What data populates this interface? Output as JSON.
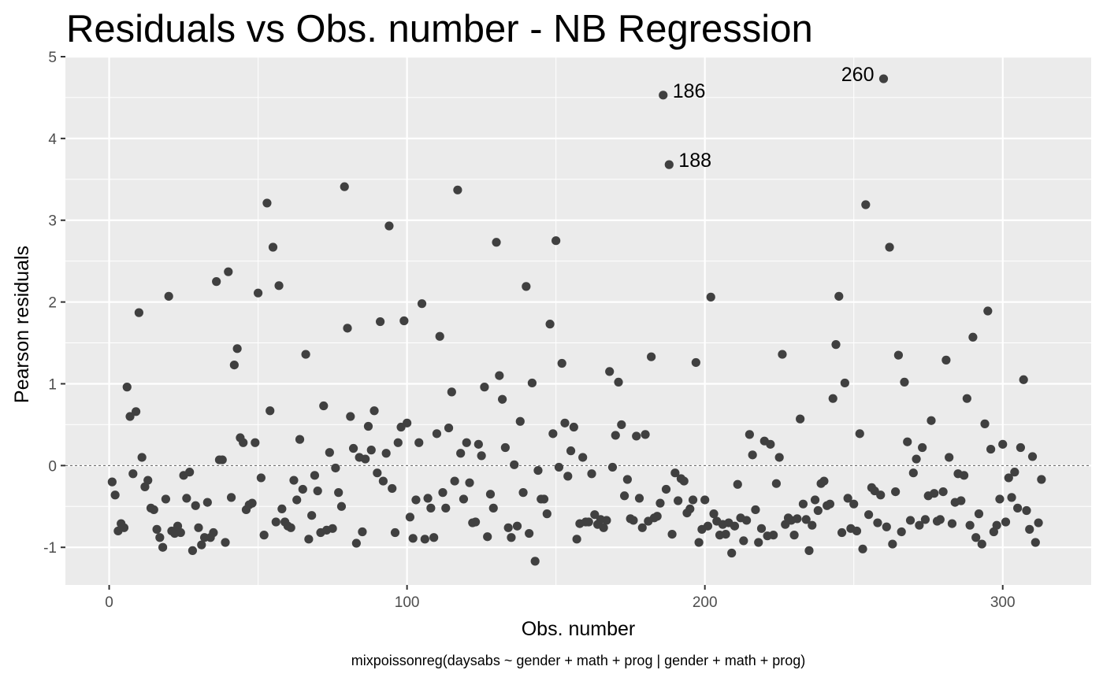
{
  "chart_data": {
    "type": "scatter",
    "title": "Residuals vs Obs. number - NB Regression",
    "xlabel": "Obs. number",
    "ylabel": "Pearson residuals",
    "caption": "mixpoissonreg(daysabs ~ gender + math + prog | gender + math + prog)",
    "xlim": [
      -14.7,
      329.7
    ],
    "ylim": [
      -1.46,
      5.0
    ],
    "x_ticks": [
      0,
      100,
      200,
      300
    ],
    "x_tick_labels": [
      "0",
      "100",
      "200",
      "300"
    ],
    "y_ticks": [
      -1,
      0,
      1,
      2,
      3,
      4,
      5
    ],
    "y_tick_labels": [
      "-1",
      "0",
      "1",
      "2",
      "3",
      "4",
      "5"
    ],
    "reference_line": 0,
    "grid": true,
    "colors": {
      "panel_background": "#ebebeb",
      "grid": "#ffffff",
      "point": "#404040",
      "reference_line": "#595959"
    },
    "y": [
      -0.2,
      -0.36,
      -0.8,
      -0.71,
      -0.76,
      0.96,
      0.6,
      -0.1,
      0.66,
      1.87,
      0.1,
      -0.26,
      -0.18,
      -0.52,
      -0.54,
      -0.78,
      -0.88,
      -1.0,
      -0.41,
      2.07,
      -0.8,
      -0.83,
      -0.74,
      -0.82,
      -0.12,
      -0.4,
      -0.08,
      -1.04,
      -0.49,
      -0.76,
      -0.97,
      -0.88,
      -0.45,
      -0.88,
      -0.82,
      2.25,
      0.07,
      0.07,
      -0.94,
      2.37,
      -0.39,
      1.23,
      1.43,
      0.34,
      0.28,
      -0.54,
      -0.48,
      -0.46,
      0.28,
      2.11,
      -0.15,
      -0.85,
      3.21,
      0.67,
      2.67,
      -0.69,
      2.2,
      -0.53,
      -0.69,
      -0.74,
      -0.76,
      -0.18,
      -0.42,
      0.32,
      -0.29,
      1.36,
      -0.9,
      -0.61,
      -0.12,
      -0.31,
      -0.82,
      0.73,
      -0.79,
      0.16,
      -0.77,
      -0.03,
      -0.33,
      -0.5,
      3.41,
      1.68,
      0.6,
      0.21,
      -0.95,
      0.1,
      -0.81,
      0.08,
      0.48,
      0.19,
      0.67,
      -0.09,
      1.76,
      -0.19,
      0.15,
      2.93,
      -0.28,
      -0.82,
      0.28,
      0.47,
      1.77,
      0.52,
      -0.63,
      -0.89,
      -0.42,
      0.28,
      1.98,
      -0.9,
      -0.4,
      -0.52,
      -0.88,
      0.39,
      1.58,
      -0.33,
      -0.52,
      0.46,
      0.9,
      -0.19,
      3.37,
      0.15,
      -0.41,
      0.28,
      -0.21,
      -0.7,
      -0.69,
      0.26,
      0.12,
      0.96,
      -0.87,
      -0.35,
      -0.52,
      2.73,
      1.1,
      0.81,
      0.22,
      -0.76,
      -0.88,
      0.01,
      -0.74,
      0.54,
      -0.33,
      2.19,
      -0.83,
      1.01,
      -1.17,
      -0.06,
      -0.41,
      -0.41,
      -0.59,
      1.73,
      0.39,
      2.75,
      -0.02,
      1.25,
      0.52,
      -0.13,
      0.18,
      0.47,
      -0.9,
      -0.71,
      0.1,
      -0.69,
      -0.69,
      -0.1,
      -0.6,
      -0.72,
      -0.66,
      -0.76,
      -0.67,
      1.15,
      -0.02,
      0.37,
      1.02,
      0.5,
      -0.37,
      -0.17,
      -0.65,
      -0.67,
      0.36,
      -0.4,
      -0.76,
      0.38,
      -0.68,
      1.33,
      -0.64,
      -0.62,
      -0.46,
      4.53,
      -0.29,
      3.68,
      -0.84,
      -0.09,
      -0.43,
      -0.16,
      -0.19,
      -0.58,
      -0.53,
      -0.42,
      1.26,
      -0.94,
      -0.78,
      -0.42,
      -0.74,
      2.06,
      -0.59,
      -0.68,
      -0.85,
      -0.72,
      -0.84,
      -0.7,
      -1.07,
      -0.74,
      -0.23,
      -0.64,
      -0.92,
      -0.67,
      0.38,
      0.13,
      -0.54,
      -0.94,
      -0.77,
      0.3,
      -0.86,
      0.26,
      -0.85,
      -0.22,
      0.1,
      1.36,
      -0.72,
      -0.64,
      -0.67,
      -0.85,
      -0.65,
      0.57,
      -0.47,
      -0.66,
      -1.04,
      -0.73,
      -0.42,
      -0.55,
      -0.22,
      -0.19,
      -0.49,
      -0.47,
      0.82,
      1.48,
      2.07,
      -0.82,
      1.01,
      -0.4,
      -0.77,
      -0.47,
      -0.8,
      0.39,
      -1.02,
      3.19,
      -0.6,
      -0.27,
      -0.31,
      -0.7,
      -0.36,
      4.73,
      -0.75,
      2.67,
      -0.96,
      -0.32,
      1.35,
      -0.81,
      1.02,
      0.29,
      -0.67,
      -0.09,
      0.08,
      -0.73,
      0.22,
      -0.66,
      -0.37,
      0.55,
      -0.34,
      -0.68,
      -0.66,
      -0.32,
      1.29,
      0.1,
      -0.71,
      -0.45,
      -0.1,
      -0.43,
      -0.12,
      0.82,
      -0.73,
      1.57,
      -0.88,
      -0.59,
      -0.96,
      0.51,
      1.89,
      0.2,
      -0.81,
      -0.73,
      -0.41,
      0.26,
      -0.69,
      -0.15,
      -0.39,
      -0.08,
      -0.52,
      0.22,
      1.05,
      -0.55,
      -0.78,
      0.11,
      -0.94,
      -0.7,
      -0.17
    ],
    "annotations": [
      {
        "label": "186",
        "x": 186,
        "y": 4.53,
        "anchor": "start"
      },
      {
        "label": "188",
        "x": 188,
        "y": 3.68,
        "anchor": "start"
      },
      {
        "label": "260",
        "x": 260,
        "y": 4.73,
        "anchor": "end"
      }
    ]
  }
}
